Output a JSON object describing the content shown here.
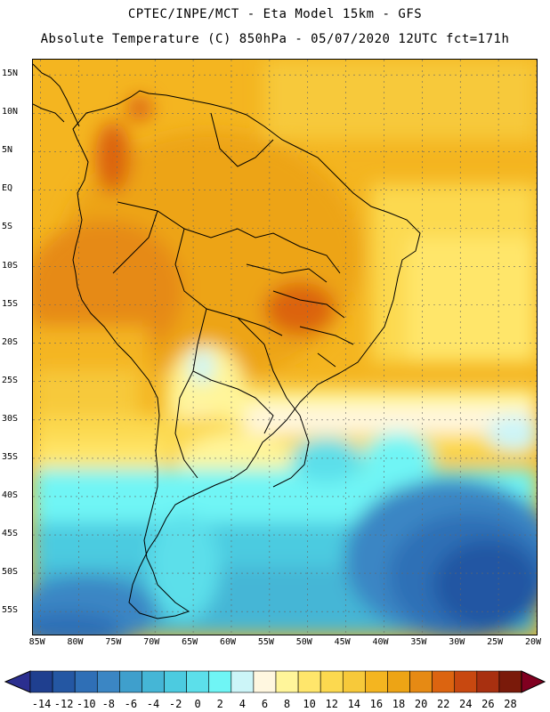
{
  "header": {
    "line1": "CPTEC/INPE/MCT -  Eta Model 15km - GFS",
    "line2": "Absolute Temperature (C) 850hPa - 05/07/2020 12UTC fct=171h"
  },
  "map": {
    "lat_labels": [
      "15N",
      "10N",
      "5N",
      "EQ",
      "5S",
      "10S",
      "15S",
      "20S",
      "25S",
      "30S",
      "35S",
      "40S",
      "45S",
      "50S",
      "55S"
    ],
    "lon_labels": [
      "85W",
      "80W",
      "75W",
      "70W",
      "65W",
      "60W",
      "55W",
      "50W",
      "45W",
      "40W",
      "35W",
      "30W",
      "25W",
      "20W"
    ],
    "lat_range_deg": [
      17,
      -58
    ],
    "lon_range_deg": [
      -86,
      -20
    ],
    "regions": [
      "South America temperature field at 850hPa"
    ]
  },
  "legend": {
    "labels": [
      "-14",
      "-12",
      "-10",
      "-8",
      "-6",
      "-4",
      "-2",
      "0",
      "2",
      "4",
      "6",
      "8",
      "10",
      "12",
      "14",
      "16",
      "18",
      "20",
      "22",
      "24",
      "26",
      "28"
    ],
    "colors": [
      "#1f3f8f",
      "#2457a3",
      "#2f6fb6",
      "#3b86c4",
      "#3f9fcc",
      "#45b6d6",
      "#4ccbe0",
      "#5cdfea",
      "#6ff5f5",
      "#ccf5f8",
      "#fff7e0",
      "#fff59a",
      "#ffe66b",
      "#fcd94f",
      "#f7c93a",
      "#f4b520",
      "#eda415",
      "#e68a14",
      "#dc6410",
      "#c84810",
      "#a83010",
      "#7a1a0a"
    ],
    "low_cap_color": "#2b2f8f",
    "high_cap_color": "#800020"
  }
}
